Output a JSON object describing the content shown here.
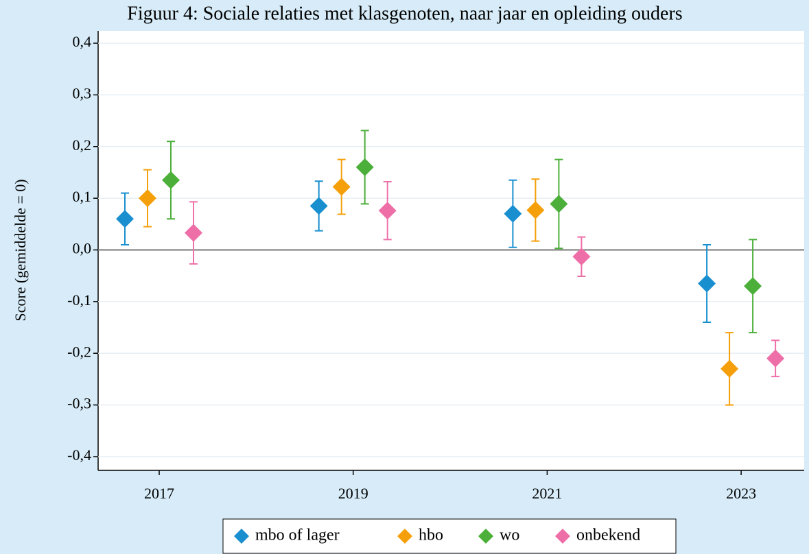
{
  "chart_data": {
    "type": "errorbar",
    "title": "Figuur 4: Sociale relaties met klasgenoten, naar jaar en opleiding ouders",
    "y_label": "Score (gemiddelde = 0)",
    "categories": [
      "2017",
      "2019",
      "2021",
      "2023"
    ],
    "ylim": [
      -0.4,
      0.4
    ],
    "yticks": [
      {
        "value": 0.4,
        "label": "0,4"
      },
      {
        "value": 0.3,
        "label": "0,3"
      },
      {
        "value": 0.2,
        "label": "0,2"
      },
      {
        "value": 0.1,
        "label": "0,1"
      },
      {
        "value": 0,
        "label": "0,0"
      },
      {
        "value": -0.1,
        "label": "-0,1"
      },
      {
        "value": -0.2,
        "label": "-0,2"
      },
      {
        "value": -0.3,
        "label": "-0,3"
      },
      {
        "value": -0.4,
        "label": "-0,4"
      }
    ],
    "grid": true,
    "legend": "bottom",
    "series": [
      {
        "name": "mbo of lager",
        "color": "#1a8fd0",
        "values": [
          0.06,
          0.085,
          0.07,
          -0.065
        ],
        "errors": [
          0.05,
          0.048,
          0.065,
          0.075
        ]
      },
      {
        "name": "hbo",
        "color": "#f5a00a",
        "values": [
          0.1,
          0.122,
          0.077,
          -0.23
        ],
        "errors": [
          0.055,
          0.053,
          0.06,
          0.07
        ]
      },
      {
        "name": "wo",
        "color": "#4caf3a",
        "values": [
          0.135,
          0.16,
          0.089,
          -0.07
        ],
        "errors": [
          0.075,
          0.071,
          0.086,
          0.09
        ]
      },
      {
        "name": "onbekend",
        "color": "#ee6fa8",
        "values": [
          0.033,
          0.076,
          -0.013,
          -0.21
        ],
        "errors": [
          0.06,
          0.056,
          0.038,
          0.035
        ]
      }
    ]
  }
}
